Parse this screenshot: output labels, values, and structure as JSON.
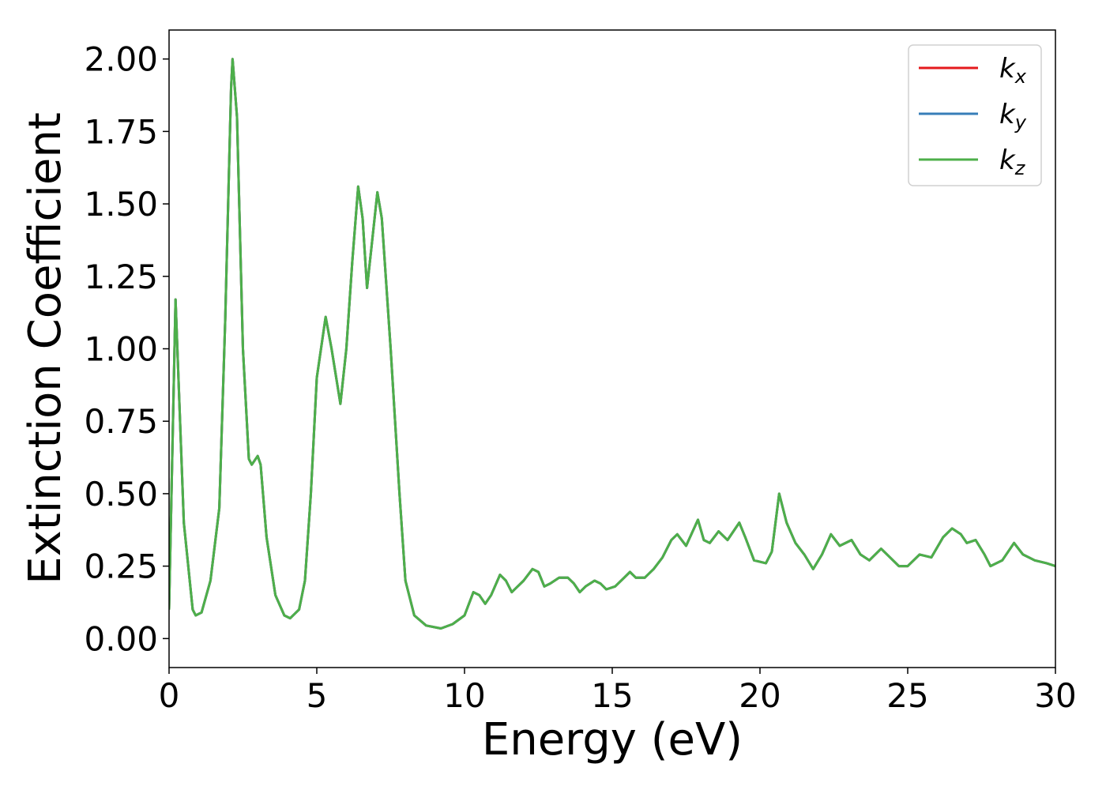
{
  "chart_data": {
    "type": "line",
    "xlabel": "Energy (eV)",
    "ylabel": "Extinction Coefficient",
    "xlim": [
      0,
      30
    ],
    "ylim": [
      -0.1,
      2.1
    ],
    "xticks": [
      0,
      5,
      10,
      15,
      20,
      25,
      30
    ],
    "yticks": [
      {
        "value": 0,
        "label": "0.00"
      },
      {
        "value": 0.25,
        "label": "0.25"
      },
      {
        "value": 0.5,
        "label": "0.50"
      },
      {
        "value": 0.75,
        "label": "0.75"
      },
      {
        "value": 1,
        "label": "1.00"
      },
      {
        "value": 1.25,
        "label": "1.25"
      },
      {
        "value": 1.5,
        "label": "1.50"
      },
      {
        "value": 1.75,
        "label": "1.75"
      },
      {
        "value": 2,
        "label": "2.00"
      }
    ],
    "legend": "upper right",
    "grid": false,
    "x": [
      0,
      0.22,
      0.5,
      0.8,
      0.9,
      1.1,
      1.4,
      1.7,
      1.9,
      2.1,
      2.15,
      2.3,
      2.5,
      2.7,
      2.8,
      3.0,
      3.1,
      3.3,
      3.6,
      3.9,
      4.1,
      4.4,
      4.6,
      4.8,
      5.0,
      5.3,
      5.5,
      5.8,
      6.0,
      6.2,
      6.4,
      6.55,
      6.7,
      6.85,
      7.05,
      7.2,
      7.5,
      7.8,
      8.0,
      8.3,
      8.7,
      9.2,
      9.6,
      10.0,
      10.3,
      10.5,
      10.7,
      10.9,
      11.2,
      11.4,
      11.6,
      11.8,
      12.0,
      12.3,
      12.5,
      12.7,
      12.9,
      13.2,
      13.5,
      13.7,
      13.9,
      14.1,
      14.4,
      14.6,
      14.8,
      15.1,
      15.4,
      15.6,
      15.8,
      16.1,
      16.4,
      16.7,
      17.0,
      17.2,
      17.5,
      17.9,
      18.1,
      18.3,
      18.6,
      18.9,
      19.3,
      19.5,
      19.8,
      20.2,
      20.4,
      20.65,
      20.9,
      21.2,
      21.5,
      21.8,
      22.1,
      22.4,
      22.7,
      23.1,
      23.4,
      23.7,
      24.1,
      24.4,
      24.7,
      25.0,
      25.4,
      25.8,
      26.2,
      26.5,
      26.8,
      27.0,
      27.3,
      27.6,
      27.8,
      28.2,
      28.6,
      28.9,
      29.3,
      29.7,
      30.0
    ],
    "series": [
      {
        "name": "kx",
        "color": "#e41a1c",
        "values": [
          0.1,
          1.17,
          0.4,
          0.1,
          0.08,
          0.09,
          0.2,
          0.45,
          1.1,
          1.9,
          2.0,
          1.8,
          1.0,
          0.62,
          0.6,
          0.63,
          0.6,
          0.35,
          0.15,
          0.08,
          0.07,
          0.1,
          0.2,
          0.5,
          0.9,
          1.11,
          1.0,
          0.81,
          1.0,
          1.3,
          1.56,
          1.45,
          1.21,
          1.35,
          1.54,
          1.45,
          1.0,
          0.5,
          0.2,
          0.08,
          0.045,
          0.035,
          0.05,
          0.08,
          0.16,
          0.15,
          0.12,
          0.15,
          0.22,
          0.2,
          0.16,
          0.18,
          0.2,
          0.24,
          0.23,
          0.18,
          0.19,
          0.21,
          0.21,
          0.19,
          0.16,
          0.18,
          0.2,
          0.19,
          0.17,
          0.18,
          0.21,
          0.23,
          0.21,
          0.21,
          0.24,
          0.28,
          0.34,
          0.36,
          0.32,
          0.41,
          0.34,
          0.33,
          0.37,
          0.34,
          0.4,
          0.35,
          0.27,
          0.26,
          0.3,
          0.5,
          0.4,
          0.33,
          0.29,
          0.24,
          0.29,
          0.36,
          0.32,
          0.34,
          0.29,
          0.27,
          0.31,
          0.28,
          0.25,
          0.25,
          0.29,
          0.28,
          0.35,
          0.38,
          0.36,
          0.33,
          0.34,
          0.29,
          0.25,
          0.27,
          0.33,
          0.29,
          0.27,
          0.26,
          0.25
        ]
      },
      {
        "name": "ky",
        "color": "#377eb8",
        "values": [
          0.1,
          1.17,
          0.4,
          0.1,
          0.08,
          0.09,
          0.2,
          0.45,
          1.1,
          1.9,
          2.0,
          1.8,
          1.0,
          0.62,
          0.6,
          0.63,
          0.6,
          0.35,
          0.15,
          0.08,
          0.07,
          0.1,
          0.2,
          0.5,
          0.9,
          1.11,
          1.0,
          0.81,
          1.0,
          1.3,
          1.56,
          1.45,
          1.21,
          1.35,
          1.54,
          1.45,
          1.0,
          0.5,
          0.2,
          0.08,
          0.045,
          0.035,
          0.05,
          0.08,
          0.16,
          0.15,
          0.12,
          0.15,
          0.22,
          0.2,
          0.16,
          0.18,
          0.2,
          0.24,
          0.23,
          0.18,
          0.19,
          0.21,
          0.21,
          0.19,
          0.16,
          0.18,
          0.2,
          0.19,
          0.17,
          0.18,
          0.21,
          0.23,
          0.21,
          0.21,
          0.24,
          0.28,
          0.34,
          0.36,
          0.32,
          0.41,
          0.34,
          0.33,
          0.37,
          0.34,
          0.4,
          0.35,
          0.27,
          0.26,
          0.3,
          0.5,
          0.4,
          0.33,
          0.29,
          0.24,
          0.29,
          0.36,
          0.32,
          0.34,
          0.29,
          0.27,
          0.31,
          0.28,
          0.25,
          0.25,
          0.29,
          0.28,
          0.35,
          0.38,
          0.36,
          0.33,
          0.34,
          0.29,
          0.25,
          0.27,
          0.33,
          0.29,
          0.27,
          0.26,
          0.25
        ]
      },
      {
        "name": "kz",
        "color": "#4daf4a",
        "values": [
          0.1,
          1.17,
          0.4,
          0.1,
          0.08,
          0.09,
          0.2,
          0.45,
          1.1,
          1.9,
          2.0,
          1.8,
          1.0,
          0.62,
          0.6,
          0.63,
          0.6,
          0.35,
          0.15,
          0.08,
          0.07,
          0.1,
          0.2,
          0.5,
          0.9,
          1.11,
          1.0,
          0.81,
          1.0,
          1.3,
          1.56,
          1.45,
          1.21,
          1.35,
          1.54,
          1.45,
          1.0,
          0.5,
          0.2,
          0.08,
          0.045,
          0.035,
          0.05,
          0.08,
          0.16,
          0.15,
          0.12,
          0.15,
          0.22,
          0.2,
          0.16,
          0.18,
          0.2,
          0.24,
          0.23,
          0.18,
          0.19,
          0.21,
          0.21,
          0.19,
          0.16,
          0.18,
          0.2,
          0.19,
          0.17,
          0.18,
          0.21,
          0.23,
          0.21,
          0.21,
          0.24,
          0.28,
          0.34,
          0.36,
          0.32,
          0.41,
          0.34,
          0.33,
          0.37,
          0.34,
          0.4,
          0.35,
          0.27,
          0.26,
          0.3,
          0.5,
          0.4,
          0.33,
          0.29,
          0.24,
          0.29,
          0.36,
          0.32,
          0.34,
          0.29,
          0.27,
          0.31,
          0.28,
          0.25,
          0.25,
          0.29,
          0.28,
          0.35,
          0.38,
          0.36,
          0.33,
          0.34,
          0.29,
          0.25,
          0.27,
          0.33,
          0.29,
          0.27,
          0.26,
          0.25
        ]
      }
    ]
  }
}
